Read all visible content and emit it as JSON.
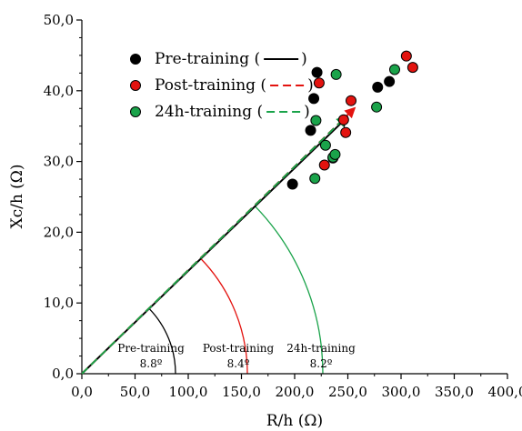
{
  "chart_data": {
    "type": "scatter",
    "title": "",
    "xlabel": "R/h (Ω)",
    "ylabel": "Xc/h (Ω)",
    "xlim": [
      0,
      400
    ],
    "ylim": [
      0,
      50
    ],
    "x_ticks": [
      "0,0",
      "50,0",
      "100,0",
      "150,0",
      "200,0",
      "250,0",
      "300,0",
      "350,0",
      "400,0"
    ],
    "y_ticks": [
      "0,0",
      "10,0",
      "20,0",
      "30,0",
      "40,0",
      "50,0"
    ],
    "grid": false,
    "legend_position": "top-left",
    "series": [
      {
        "name": "Pre-training",
        "legend_text": "Pre-training (",
        "color": "#000000",
        "line_style": "solid",
        "vector": {
          "x": 249,
          "y": 36.2
        },
        "arc_radius": 103,
        "angle_label": "Pre-training",
        "angle_value": "8.8º",
        "points": [
          [
            198,
            26.8
          ],
          [
            215,
            34.4
          ],
          [
            218,
            38.9
          ],
          [
            221,
            42.6
          ],
          [
            236,
            30.5
          ],
          [
            278,
            40.5
          ],
          [
            289,
            41.3
          ]
        ]
      },
      {
        "name": "Post-training",
        "legend_text": "Post-training (",
        "color": "#e3130f",
        "line_style": "dashed",
        "vector": {
          "x": 256,
          "y": 37.5
        },
        "arc_radius": 182,
        "angle_label": "Post-training",
        "angle_value": "8.4º",
        "points": [
          [
            223,
            41.1
          ],
          [
            228,
            29.5
          ],
          [
            246,
            35.9
          ],
          [
            248,
            34.1
          ],
          [
            253,
            38.6
          ],
          [
            305,
            44.9
          ],
          [
            311,
            43.3
          ]
        ]
      },
      {
        "name": "24h-training",
        "legend_text": "24h-training (",
        "color": "#1aa34a",
        "line_style": "dashed",
        "vector": {
          "x": 248,
          "y": 36.3
        },
        "arc_radius": 265,
        "angle_label": "24h-training",
        "angle_value": "8.2º",
        "points": [
          [
            219,
            27.6
          ],
          [
            220,
            35.8
          ],
          [
            229,
            32.3
          ],
          [
            236,
            30.6
          ],
          [
            238,
            31.0
          ],
          [
            239,
            42.3
          ],
          [
            277,
            37.7
          ],
          [
            294,
            43.0
          ]
        ]
      }
    ],
    "legend_close": ")"
  }
}
